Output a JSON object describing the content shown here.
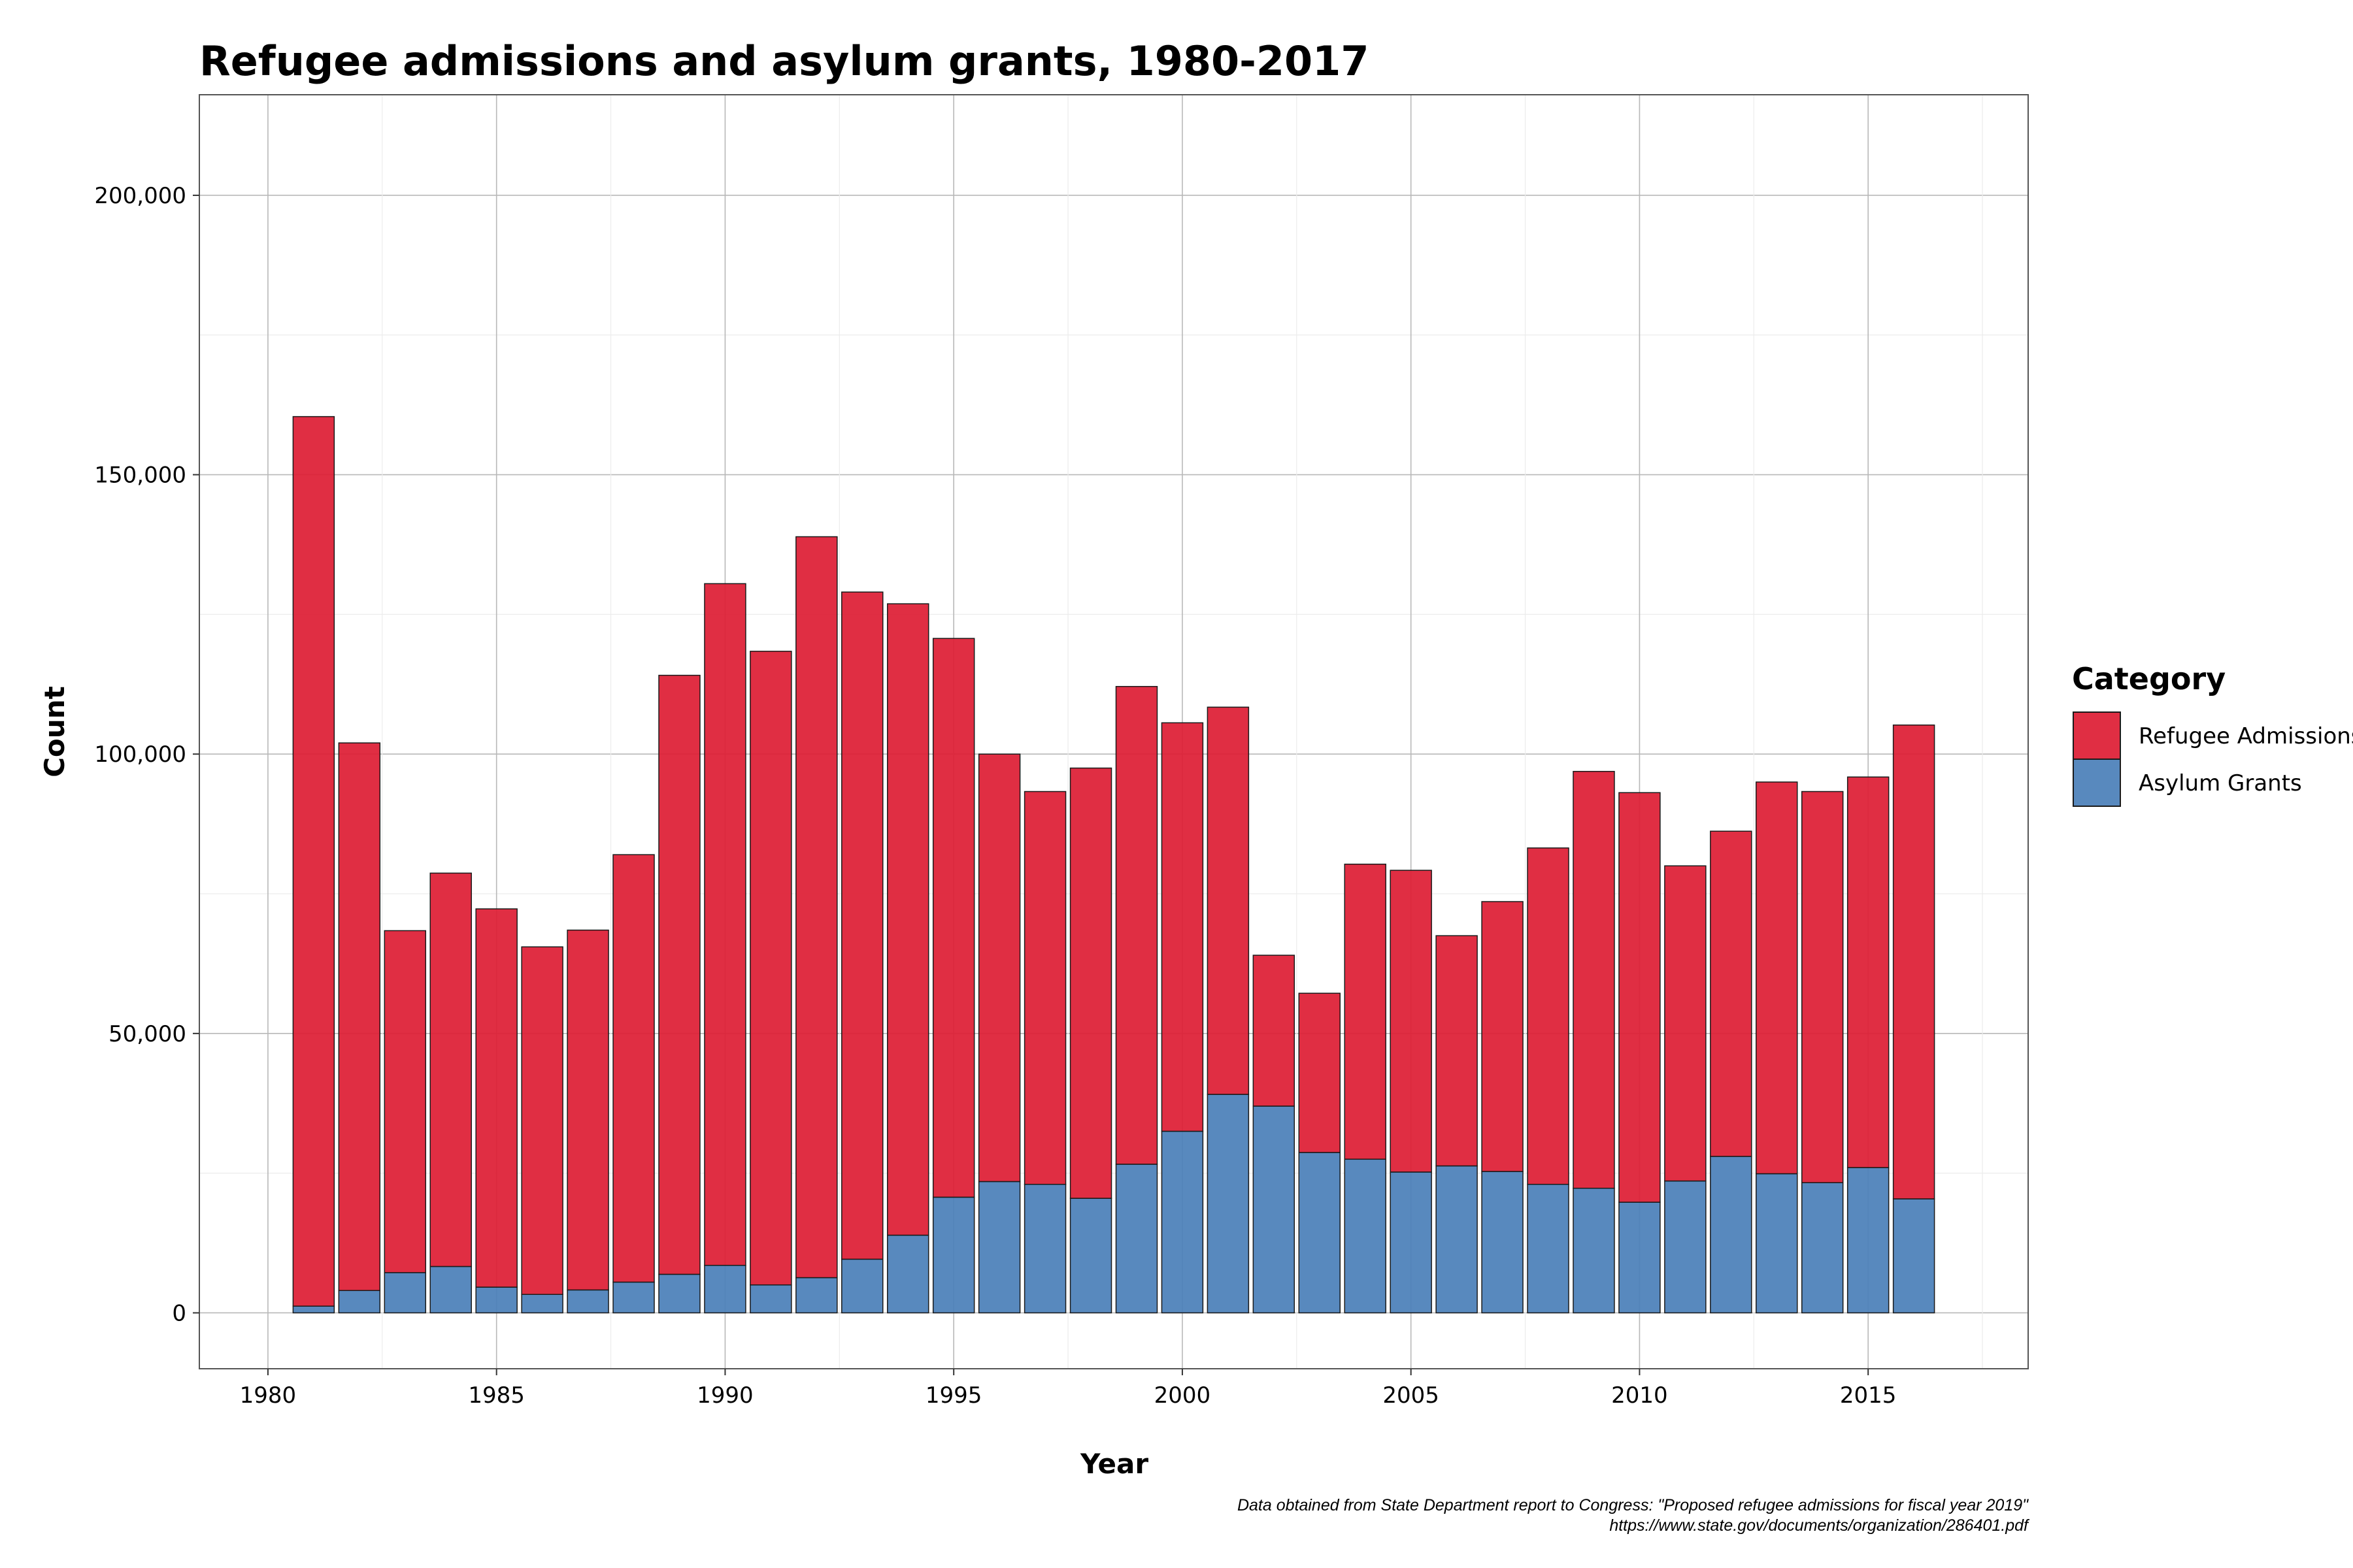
{
  "chart_data": {
    "type": "bar",
    "stacked": true,
    "title": "Refugee admissions and asylum grants, 1980-2017",
    "xlabel": "Year",
    "ylabel": "Count",
    "x": [
      1981,
      1982,
      1983,
      1984,
      1985,
      1986,
      1987,
      1988,
      1989,
      1990,
      1991,
      1992,
      1993,
      1994,
      1995,
      1996,
      1997,
      1998,
      1999,
      2000,
      2001,
      2002,
      2003,
      2004,
      2005,
      2006,
      2007,
      2008,
      2009,
      2010,
      2011,
      2012,
      2013,
      2014,
      2015,
      2016
    ],
    "series": [
      {
        "name": "Asylum Grants",
        "color": "#4a7fb8",
        "values": [
          1200,
          4000,
          7200,
          8300,
          4600,
          3300,
          4100,
          5500,
          6900,
          8500,
          5000,
          6300,
          9600,
          13900,
          20700,
          23500,
          23000,
          20500,
          26600,
          32500,
          39100,
          37000,
          28700,
          27500,
          25200,
          26300,
          25300,
          23000,
          22300,
          19800,
          23600,
          28000,
          24900,
          23300,
          26000,
          20400
        ]
      },
      {
        "name": "Refugee Admissions",
        "color": "#dd1c33",
        "values": [
          159200,
          98000,
          61200,
          70400,
          67700,
          62200,
          64400,
          76500,
          107200,
          122000,
          113400,
          132600,
          119400,
          113000,
          100000,
          76500,
          70300,
          77000,
          85500,
          73100,
          69300,
          27000,
          28500,
          52800,
          54000,
          41200,
          48300,
          60200,
          74600,
          73300,
          56400,
          58200,
          70100,
          70000,
          69900,
          84800
        ]
      }
    ],
    "ylim": [
      -10000,
      218000
    ],
    "xlim": [
      1978.5,
      2018.5
    ],
    "yticks": [
      0,
      50000,
      100000,
      150000,
      200000
    ],
    "ytick_labels": [
      "0",
      "50,000",
      "100,000",
      "150,000",
      "200,000"
    ],
    "xticks": [
      1980,
      1985,
      1990,
      1995,
      2000,
      2005,
      2010,
      2015
    ],
    "xtick_labels": [
      "1980",
      "1985",
      "1990",
      "1995",
      "2000",
      "2005",
      "2010",
      "2015"
    ],
    "grid": true,
    "legend": {
      "title": "Category",
      "placement": "right",
      "entries": [
        {
          "label": "Refugee Admissions",
          "color": "#dd1c33"
        },
        {
          "label": "Asylum Grants",
          "color": "#4a7fb8"
        }
      ]
    },
    "caption": [
      "Data obtained from State Department report to Congress: \"Proposed refugee admissions for fiscal year 2019\"",
      "https://www.state.gov/documents/organization/286401.pdf"
    ]
  }
}
